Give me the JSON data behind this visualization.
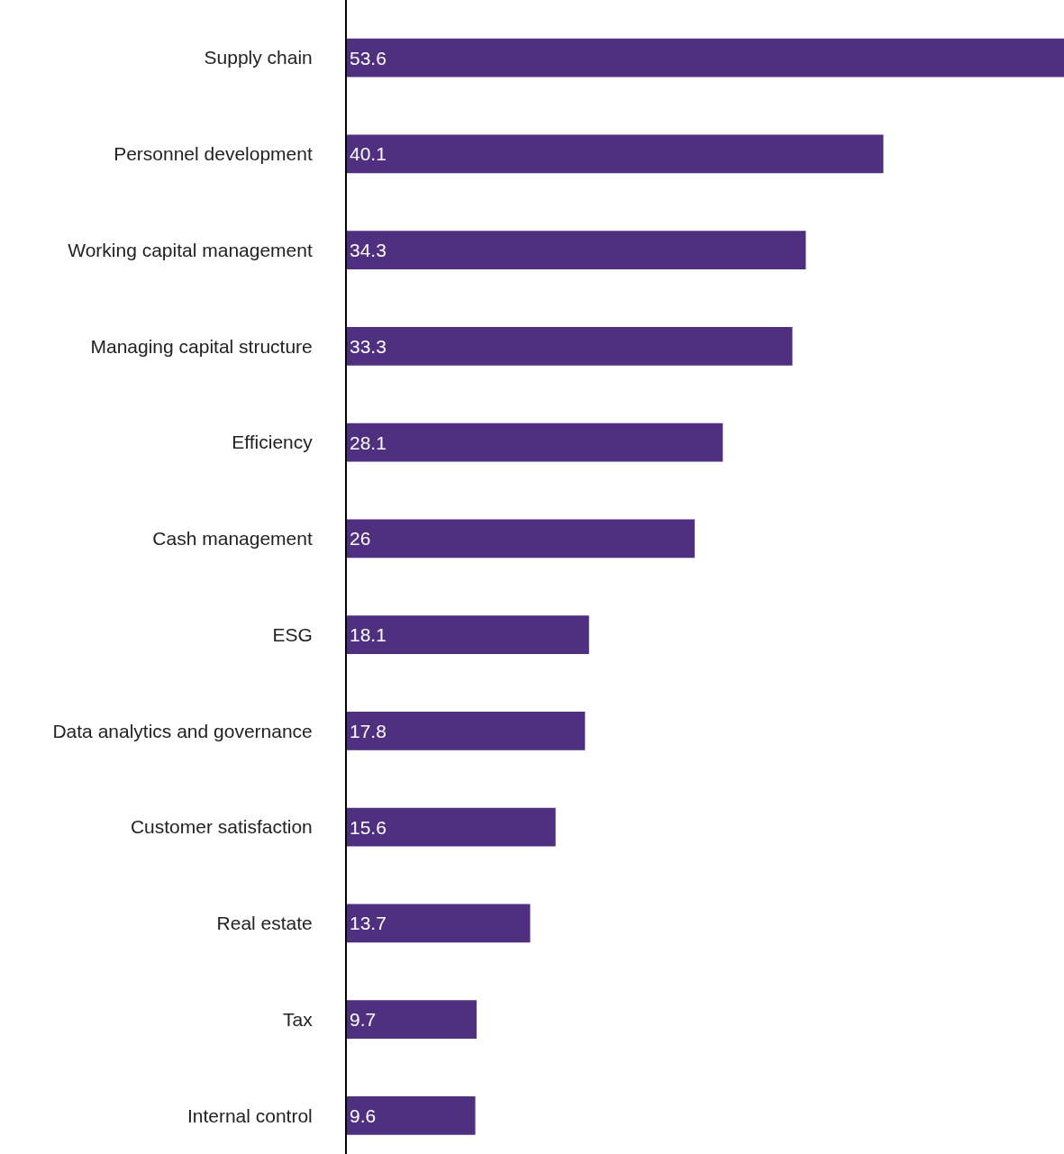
{
  "chart_data": {
    "type": "bar",
    "orientation": "horizontal",
    "data_labels": true,
    "categories": [
      "Supply chain",
      "Personnel development",
      "Working capital management",
      "Managing capital structure",
      "Efficiency",
      "Cash management",
      "ESG",
      "Data analytics and governance",
      "Customer satisfaction",
      "Real estate",
      "Tax",
      "Internal control"
    ],
    "values": [
      53.6,
      40.1,
      34.3,
      33.3,
      28.1,
      26,
      18.1,
      17.8,
      15.6,
      13.7,
      9.7,
      9.6
    ],
    "color": "#4f2f7f",
    "legend": false
  }
}
